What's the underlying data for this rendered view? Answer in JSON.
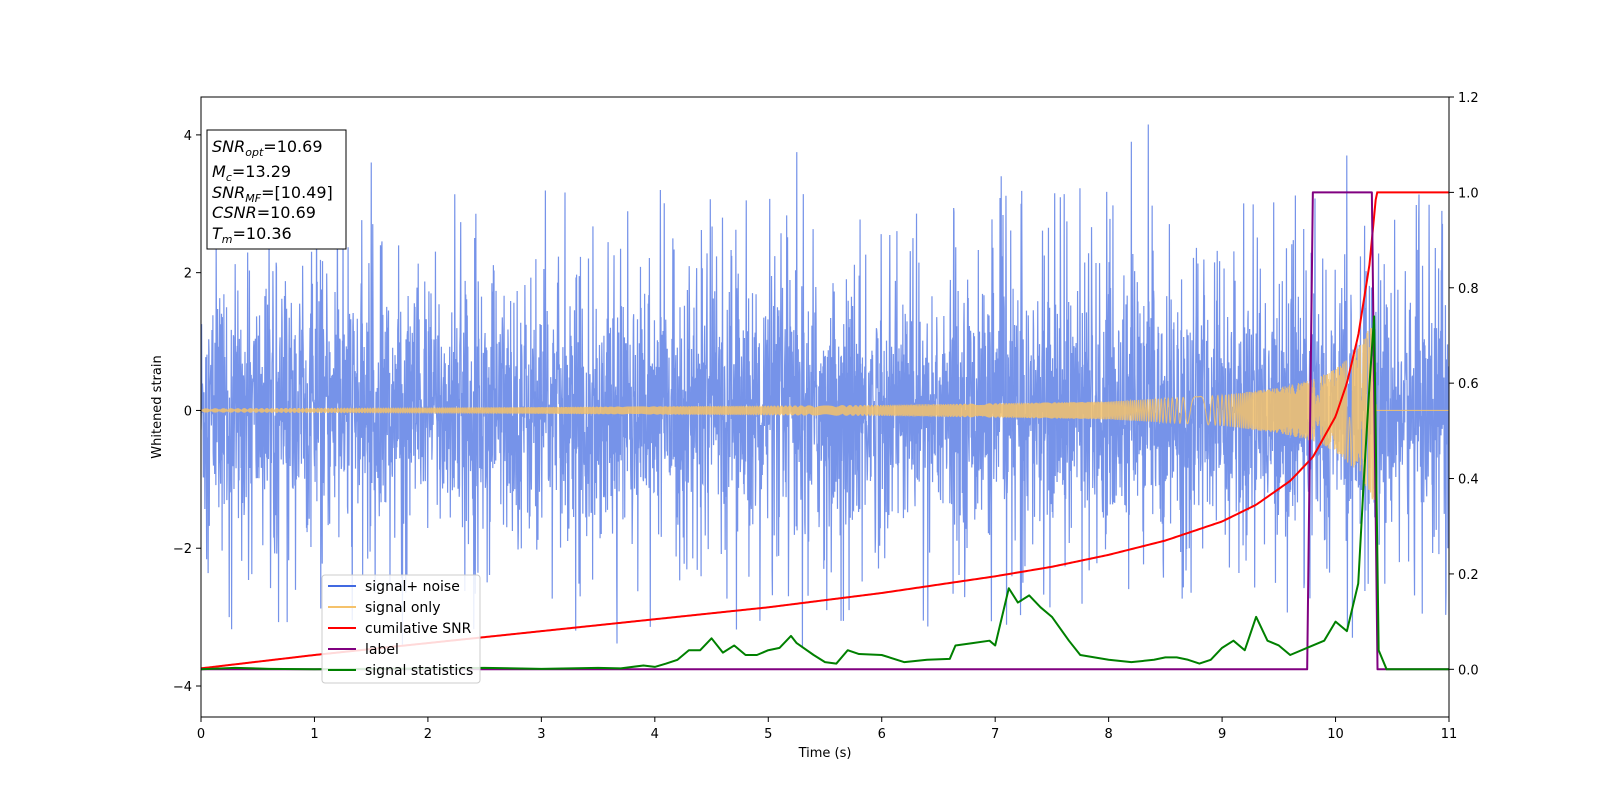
{
  "chart_data": {
    "type": "line",
    "xlabel": "Time (s)",
    "ylabel": "Whitened strain",
    "xlim": [
      0,
      11
    ],
    "ylim": [
      -4.45,
      4.55
    ],
    "y2lim": [
      -0.1,
      1.2
    ],
    "x_ticks": [
      0,
      1,
      2,
      3,
      4,
      5,
      6,
      7,
      8,
      9,
      10,
      11
    ],
    "y_ticks": [
      -4,
      -2,
      0,
      2,
      4
    ],
    "y2_ticks": [
      "0.0",
      "0.2",
      "0.4",
      "0.6",
      "0.8",
      "1.0",
      "1.2"
    ],
    "legend": {
      "placement": "lower-left",
      "entries": [
        "signal+ noise",
        "signal only",
        "cumilative SNR",
        "label",
        "signal statistics"
      ]
    },
    "info_box": [
      {
        "var": "SNR",
        "sub": "opt",
        "value": "=10.69"
      },
      {
        "var": "M",
        "sub": "c",
        "value": "=13.29"
      },
      {
        "var": "SNR",
        "sub": "MF",
        "value": "=[10.49]"
      },
      {
        "var": "CSNR",
        "sub": "",
        "value": "=10.69"
      },
      {
        "var": "T",
        "sub": "m",
        "value": "=10.36"
      }
    ],
    "series": [
      {
        "name": "signal+ noise",
        "axis": "left",
        "color": "#4169e1",
        "kind": "noise",
        "envelope_abs": 2.3,
        "typical_abs": 1.5,
        "extremes": [
          [
            0.25,
            -3.0
          ],
          [
            1.5,
            3.6
          ],
          [
            4.05,
            3.2
          ],
          [
            5.25,
            3.75
          ],
          [
            5.3,
            -3.45
          ],
          [
            8.2,
            3.9
          ],
          [
            8.35,
            4.15
          ],
          [
            10.1,
            3.7
          ],
          [
            10.15,
            -3.3
          ]
        ]
      },
      {
        "name": "signal only",
        "axis": "left",
        "color": "#f5c26b",
        "kind": "chirp",
        "amplitude_points": [
          [
            0,
            0.03
          ],
          [
            3,
            0.05
          ],
          [
            6,
            0.08
          ],
          [
            8,
            0.13
          ],
          [
            9,
            0.22
          ],
          [
            9.5,
            0.33
          ],
          [
            9.8,
            0.45
          ],
          [
            10.0,
            0.6
          ],
          [
            10.2,
            0.9
          ],
          [
            10.3,
            1.2
          ],
          [
            10.34,
            1.35
          ],
          [
            10.36,
            0
          ]
        ],
        "merger_time": 10.36
      },
      {
        "name": "cumilative SNR",
        "axis": "right",
        "color": "#ff0000",
        "x": [
          0,
          1,
          2,
          3,
          4,
          5,
          6,
          7,
          7.5,
          8,
          8.5,
          9,
          9.3,
          9.6,
          9.8,
          10.0,
          10.1,
          10.2,
          10.3,
          10.36,
          11
        ],
        "values": [
          0.002,
          0.03,
          0.055,
          0.08,
          0.105,
          0.13,
          0.16,
          0.195,
          0.215,
          0.24,
          0.27,
          0.31,
          0.345,
          0.395,
          0.445,
          0.53,
          0.6,
          0.7,
          0.85,
          1.0,
          1.0
        ]
      },
      {
        "name": "label",
        "axis": "right",
        "color": "#800080",
        "x": [
          0,
          9.75,
          9.8,
          10.32,
          10.37,
          11
        ],
        "values": [
          0,
          0,
          1,
          1,
          0,
          0
        ]
      },
      {
        "name": "signal statistics",
        "axis": "right",
        "color": "#008000",
        "x": [
          0,
          0.3,
          0.6,
          1,
          2,
          2.5,
          3,
          3.5,
          3.7,
          3.9,
          4.0,
          4.1,
          4.2,
          4.3,
          4.4,
          4.5,
          4.6,
          4.7,
          4.8,
          4.9,
          5.0,
          5.1,
          5.2,
          5.25,
          5.4,
          5.5,
          5.6,
          5.7,
          5.8,
          6.0,
          6.2,
          6.4,
          6.6,
          6.65,
          6.8,
          6.95,
          7.0,
          7.12,
          7.2,
          7.3,
          7.4,
          7.5,
          7.65,
          7.75,
          8.0,
          8.2,
          8.4,
          8.5,
          8.6,
          8.7,
          8.8,
          8.9,
          9.0,
          9.1,
          9.2,
          9.3,
          9.4,
          9.5,
          9.6,
          9.8,
          9.9,
          10.0,
          10.1,
          10.2,
          10.25,
          10.3,
          10.34,
          10.38,
          10.45,
          10.5,
          11
        ],
        "values": [
          0.0,
          0.003,
          0.001,
          0.0,
          0.002,
          0.003,
          0.001,
          0.003,
          0.002,
          0.008,
          0.005,
          0.012,
          0.02,
          0.04,
          0.04,
          0.065,
          0.035,
          0.05,
          0.03,
          0.03,
          0.04,
          0.045,
          0.07,
          0.055,
          0.03,
          0.015,
          0.012,
          0.04,
          0.032,
          0.03,
          0.015,
          0.02,
          0.022,
          0.05,
          0.055,
          0.06,
          0.05,
          0.17,
          0.14,
          0.155,
          0.13,
          0.11,
          0.06,
          0.03,
          0.02,
          0.015,
          0.02,
          0.025,
          0.025,
          0.02,
          0.012,
          0.02,
          0.045,
          0.06,
          0.04,
          0.11,
          0.06,
          0.05,
          0.03,
          0.05,
          0.06,
          0.1,
          0.08,
          0.18,
          0.4,
          0.6,
          0.74,
          0.04,
          0.0,
          0.0,
          0.0
        ]
      }
    ]
  }
}
